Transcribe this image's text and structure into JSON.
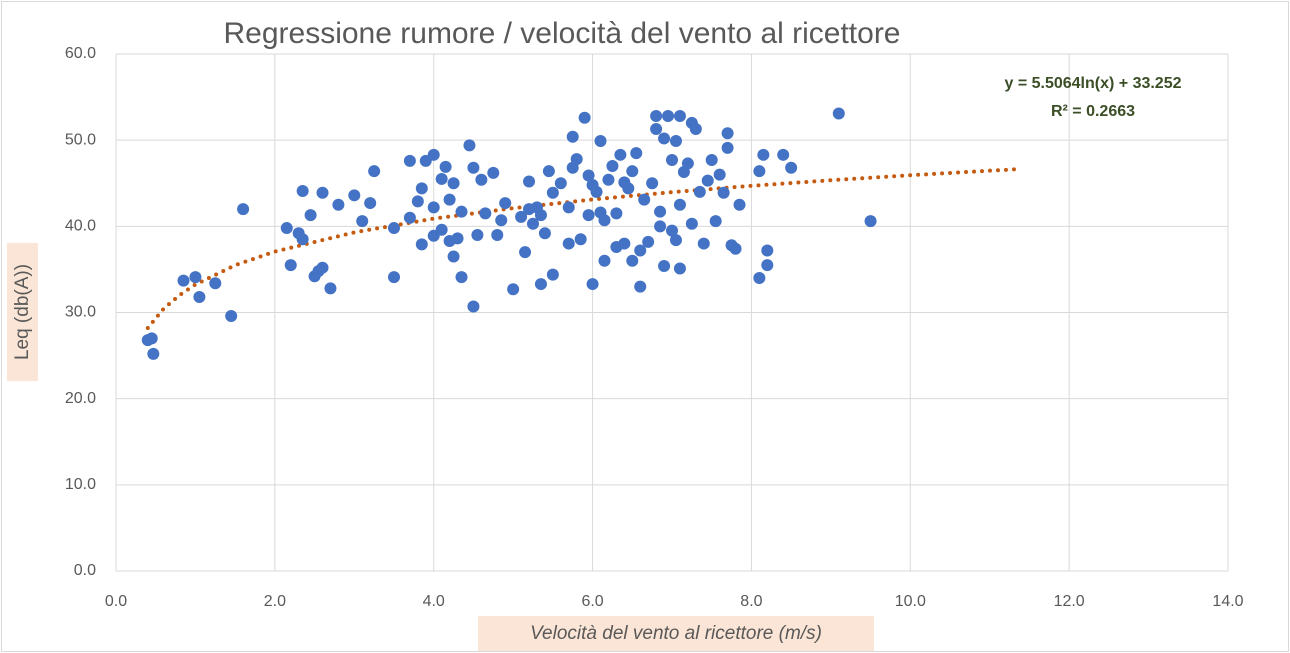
{
  "chart_data": {
    "type": "scatter",
    "title": "Regressione rumore / velocità del vento al ricettore",
    "x_label": "Velocità  del vento al ricettore  (m/s)",
    "y_label": "Leq (db(A))",
    "xlim": [
      0,
      14
    ],
    "ylim": [
      0,
      60
    ],
    "xticks": [
      {
        "value": 0,
        "label": "0.0"
      },
      {
        "value": 2,
        "label": "2.0"
      },
      {
        "value": 4,
        "label": "4.0"
      },
      {
        "value": 6,
        "label": "6.0"
      },
      {
        "value": 8,
        "label": "8.0"
      },
      {
        "value": 10,
        "label": "10.0"
      },
      {
        "value": 12,
        "label": "12.0"
      },
      {
        "value": 14,
        "label": "14.0"
      }
    ],
    "yticks": [
      {
        "value": 0,
        "label": "0.0"
      },
      {
        "value": 10,
        "label": "10.0"
      },
      {
        "value": 20,
        "label": "20.0"
      },
      {
        "value": 30,
        "label": "30.0"
      },
      {
        "value": 40,
        "label": "40.0"
      },
      {
        "value": 50,
        "label": "50.0"
      },
      {
        "value": 60,
        "label": "60.0"
      }
    ],
    "grid": true,
    "color": "#4472c4",
    "x": [
      0.4,
      0.45,
      0.47,
      0.85,
      1.0,
      1.05,
      1.25,
      1.45,
      1.6,
      2.15,
      2.2,
      2.3,
      2.35,
      2.35,
      2.45,
      2.5,
      2.55,
      2.6,
      2.6,
      2.7,
      2.8,
      3.0,
      3.1,
      3.2,
      3.25,
      3.5,
      3.5,
      3.7,
      3.7,
      3.8,
      3.85,
      3.85,
      3.9,
      4.0,
      4.0,
      4.0,
      4.1,
      4.1,
      4.15,
      4.2,
      4.2,
      4.25,
      4.25,
      4.3,
      4.35,
      4.35,
      4.45,
      4.5,
      4.5,
      4.55,
      4.6,
      4.65,
      4.75,
      4.8,
      4.85,
      4.9,
      5.0,
      5.1,
      5.15,
      5.2,
      5.2,
      5.25,
      5.3,
      5.35,
      5.35,
      5.4,
      5.45,
      5.5,
      5.5,
      5.6,
      5.7,
      5.7,
      5.75,
      5.75,
      5.8,
      5.85,
      5.9,
      5.95,
      5.95,
      6.0,
      6.0,
      6.05,
      6.1,
      6.1,
      6.15,
      6.15,
      6.2,
      6.25,
      6.3,
      6.3,
      6.35,
      6.4,
      6.4,
      6.45,
      6.5,
      6.5,
      6.55,
      6.6,
      6.6,
      6.65,
      6.7,
      6.75,
      6.8,
      6.8,
      6.85,
      6.85,
      6.9,
      6.9,
      6.95,
      7.0,
      7.0,
      7.05,
      7.05,
      7.1,
      7.1,
      7.1,
      7.15,
      7.2,
      7.25,
      7.25,
      7.3,
      7.35,
      7.4,
      7.45,
      7.5,
      7.55,
      7.6,
      7.65,
      7.7,
      7.7,
      7.75,
      7.8,
      7.85,
      8.1,
      8.1,
      8.15,
      8.2,
      8.2,
      8.4,
      8.5,
      9.1,
      9.5
    ],
    "values": [
      26.8,
      27,
      25.2,
      33.7,
      34.1,
      31.8,
      33.4,
      29.6,
      42,
      39.8,
      35.5,
      39.2,
      44.1,
      38.5,
      41.3,
      34.2,
      34.8,
      35.2,
      43.9,
      32.8,
      42.5,
      43.6,
      40.6,
      42.7,
      46.4,
      39.8,
      34.1,
      41,
      47.6,
      42.9,
      44.4,
      37.9,
      47.6,
      48.3,
      42.2,
      38.9,
      45.5,
      39.6,
      46.9,
      38.3,
      43.1,
      45,
      36.5,
      38.6,
      34.1,
      41.7,
      49.4,
      46.8,
      30.7,
      39,
      45.4,
      41.5,
      46.2,
      39,
      40.7,
      42.7,
      32.7,
      41.1,
      37,
      45.2,
      42,
      40.3,
      42.2,
      41.3,
      33.3,
      39.2,
      46.4,
      34.4,
      43.9,
      45,
      42.2,
      38,
      50.4,
      46.8,
      47.8,
      38.5,
      52.6,
      41.3,
      45.9,
      33.3,
      44.8,
      44,
      49.9,
      41.6,
      40.7,
      36,
      45.4,
      47,
      41.5,
      37.6,
      48.3,
      38,
      45.1,
      44.4,
      46.4,
      36,
      48.5,
      33,
      37.2,
      43.1,
      38.2,
      45,
      52.8,
      51.3,
      41.7,
      40,
      50.2,
      35.4,
      52.8,
      39.5,
      47.7,
      38.4,
      49.9,
      52.8,
      35.1,
      42.5,
      46.3,
      47.3,
      52,
      40.3,
      51.3,
      44,
      38,
      45.3,
      47.7,
      40.6,
      46,
      43.9,
      50.8,
      49.1,
      37.8,
      37.4,
      42.5,
      34,
      46.4,
      48.3,
      37.2,
      35.5,
      48.3,
      46.8,
      53.1,
      40.6
    ],
    "trendline": {
      "equation": "y = 5.5064ln(x) + 33.252",
      "r2": "R² = 0.2663",
      "color": "#c55a11",
      "x": [
        0.4,
        0.6,
        0.8,
        1,
        1.5,
        2,
        3,
        4,
        5,
        6,
        7,
        8,
        9,
        10,
        11,
        11.35
      ],
      "values": [
        28.2,
        30.44,
        32.02,
        33.25,
        35.49,
        37.07,
        39.3,
        40.89,
        42.11,
        43.12,
        43.97,
        44.7,
        45.35,
        45.93,
        46.46,
        46.63
      ]
    }
  }
}
